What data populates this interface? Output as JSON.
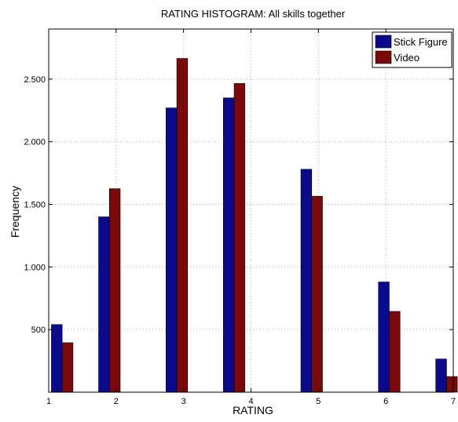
{
  "chart_data": {
    "type": "bar",
    "title": "RATING HISTOGRAM: All skills together",
    "xlabel": "RATING",
    "ylabel": "Frequency",
    "xlim": [
      1,
      7
    ],
    "ylim": [
      0,
      2900
    ],
    "x_ticks": [
      {
        "value": 1,
        "label": "1"
      },
      {
        "value": 2,
        "label": "2"
      },
      {
        "value": 3,
        "label": "3"
      },
      {
        "value": 4,
        "label": "4"
      },
      {
        "value": 5,
        "label": "5"
      },
      {
        "value": 6,
        "label": "6"
      },
      {
        "value": 7,
        "label": "7"
      }
    ],
    "y_ticks": [
      {
        "value": 500,
        "label": "500"
      },
      {
        "value": 1000,
        "label": "1.000"
      },
      {
        "value": 1500,
        "label": "1.500"
      },
      {
        "value": 2000,
        "label": "2.000"
      },
      {
        "value": 2500,
        "label": "2.500"
      }
    ],
    "x": [
      1.2,
      1.9,
      2.9,
      3.75,
      4.9,
      6.05,
      6.9
    ],
    "bar_width": 0.16,
    "grid": true,
    "legend_position": "top-right",
    "series": [
      {
        "name": "Stick Figure",
        "color": "#0a0a8c",
        "values": [
          540,
          1400,
          2270,
          2350,
          1780,
          880,
          265
        ]
      },
      {
        "name": "Video",
        "color": "#7a0a0a",
        "values": [
          395,
          1625,
          2665,
          2465,
          1565,
          645,
          125
        ]
      }
    ]
  }
}
